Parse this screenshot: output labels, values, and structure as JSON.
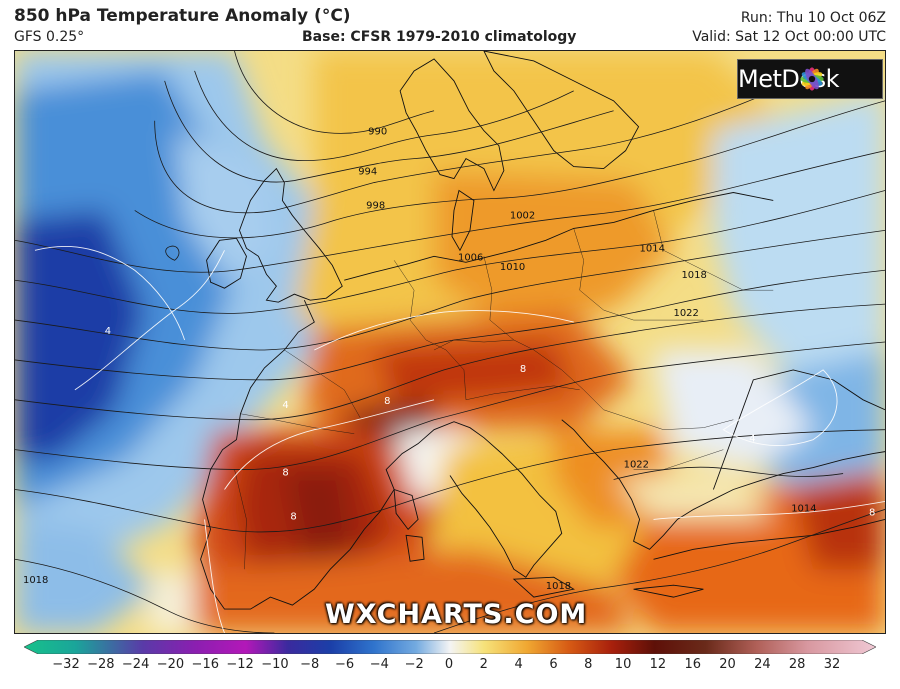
{
  "header": {
    "title": "850 hPa Temperature Anomaly (°C)",
    "model": "GFS 0.25°",
    "base": "Base: CFSR 1979-2010 climatology",
    "run": "Run: Thu 10 Oct 06Z",
    "valid": "Valid: Sat 12 Oct 00:00 UTC"
  },
  "logo": {
    "text": "MetDesk",
    "icon": "metdesk-flower-icon"
  },
  "watermark": "WXCHARTS.COM",
  "map": {
    "isobar_labels": [
      "990",
      "994",
      "998",
      "1002",
      "1006",
      "1010",
      "1014",
      "1018",
      "1022",
      "1022",
      "1018",
      "1018",
      "1014"
    ],
    "anomaly_labels": [
      "8",
      "8",
      "8",
      "8",
      "4",
      "4",
      "4",
      "8"
    ],
    "colors": {
      "deep_cold": "#1a2f9a",
      "cold": "#3f86d6",
      "cool": "#9ec8ec",
      "neutral": "#f3f3f3",
      "mild": "#f6dd6e",
      "warm": "#ef9d2b",
      "hot": "#c9380e",
      "very_hot": "#6e120a"
    }
  },
  "colorbar": {
    "ticks": [
      "−32",
      "−28",
      "−24",
      "−20",
      "−16",
      "−12",
      "−10",
      "−8",
      "−6",
      "−4",
      "−2",
      "0",
      "2",
      "4",
      "6",
      "8",
      "10",
      "12",
      "16",
      "20",
      "24",
      "28",
      "32"
    ]
  }
}
